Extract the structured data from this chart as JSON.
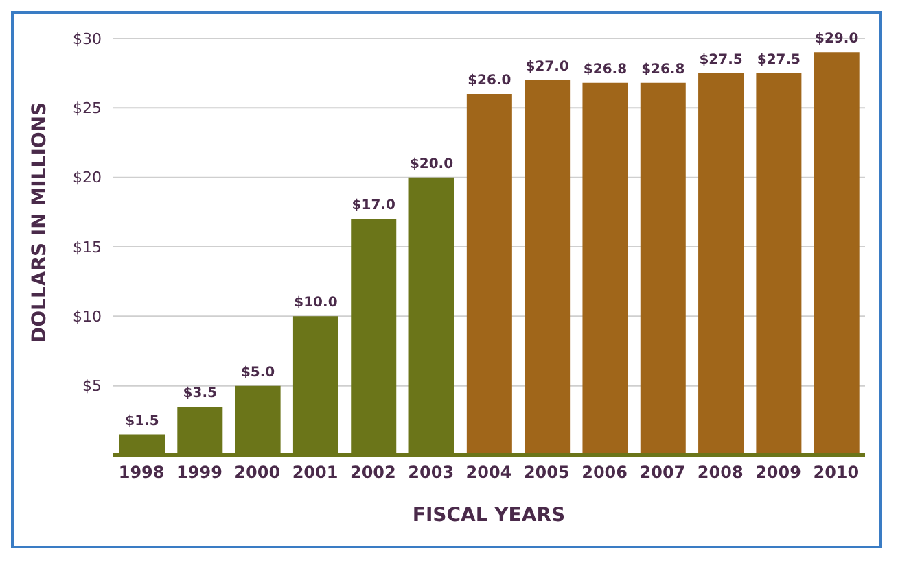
{
  "chart_data": {
    "type": "bar",
    "xlabel": "FISCAL YEARS",
    "ylabel": "DOLLARS IN MILLIONS",
    "categories": [
      "1998",
      "1999",
      "2000",
      "2001",
      "2002",
      "2003",
      "2004",
      "2005",
      "2006",
      "2007",
      "2008",
      "2009",
      "2010"
    ],
    "values": [
      1.5,
      3.5,
      5.0,
      10.0,
      17.0,
      20.0,
      26.0,
      27.0,
      26.8,
      26.8,
      27.5,
      27.5,
      29.0
    ],
    "colors": [
      "#6b7519",
      "#6b7519",
      "#6b7519",
      "#6b7519",
      "#6b7519",
      "#6b7519",
      "#a0661a",
      "#a0661a",
      "#a0661a",
      "#a0661a",
      "#a0661a",
      "#a0661a",
      "#a0661a"
    ],
    "value_labels": [
      "$1.5",
      "$3.5",
      "$5.0",
      "$10.0",
      "$17.0",
      "$20.0",
      "$26.0",
      "$27.0",
      "$26.8",
      "$26.8",
      "$27.5",
      "$27.5",
      "$29.0"
    ],
    "ylim": [
      0,
      30
    ],
    "yticks": [
      {
        "value": 0,
        "label": null
      },
      {
        "value": 5,
        "label": "$5"
      },
      {
        "value": 10,
        "label": "$10"
      },
      {
        "value": 15,
        "label": "$15"
      },
      {
        "value": 20,
        "label": "$20"
      },
      {
        "value": 25,
        "label": "$25"
      },
      {
        "value": 30,
        "label": "$30"
      }
    ],
    "grid": "y"
  }
}
